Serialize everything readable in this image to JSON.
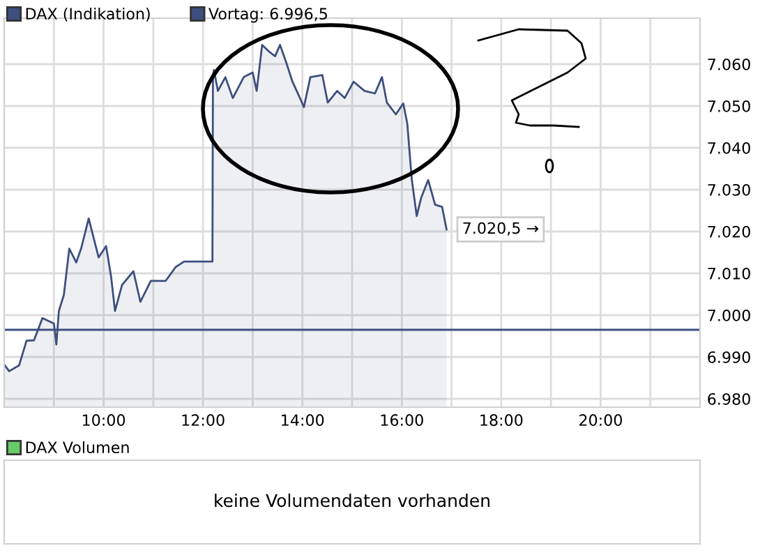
{
  "chart_data": [
    {
      "type": "area",
      "legend": "top",
      "grid": true,
      "tick_labels": "xy",
      "xlim": [
        8,
        22
      ],
      "ylim": [
        6978,
        7071
      ],
      "xticks": [
        {
          "value": 9,
          "label": null
        },
        {
          "value": 10,
          "label": "10:00"
        },
        {
          "value": 11,
          "label": null
        },
        {
          "value": 12,
          "label": "12:00"
        },
        {
          "value": 13,
          "label": null
        },
        {
          "value": 14,
          "label": "14:00"
        },
        {
          "value": 15,
          "label": null
        },
        {
          "value": 16,
          "label": "16:00"
        },
        {
          "value": 17,
          "label": null
        },
        {
          "value": 18,
          "label": "18:00"
        },
        {
          "value": 19,
          "label": null
        },
        {
          "value": 20,
          "label": "20:00"
        },
        {
          "value": 21,
          "label": null
        }
      ],
      "yticks": [
        {
          "value": 6980,
          "label": "6.980"
        },
        {
          "value": 6990,
          "label": "6.990"
        },
        {
          "value": 7000,
          "label": "7.000"
        },
        {
          "value": 7010,
          "label": "7.010"
        },
        {
          "value": 7020,
          "label": "7.020"
        },
        {
          "value": 7030,
          "label": "7.030"
        },
        {
          "value": 7040,
          "label": "7.040"
        },
        {
          "value": 7050,
          "label": "7.050"
        },
        {
          "value": 7060,
          "label": "7.060"
        }
      ],
      "series": [
        {
          "name": "DAX (Indikation)",
          "color": "#3d4f7f",
          "x": [
            8.0,
            8.1,
            8.3,
            8.45,
            8.6,
            8.77,
            9.0,
            9.05,
            9.1,
            9.2,
            9.31,
            9.45,
            9.55,
            9.7,
            9.9,
            10.05,
            10.15,
            10.23,
            10.37,
            10.6,
            10.74,
            10.95,
            11.25,
            11.45,
            11.62,
            12.19,
            12.2,
            12.22,
            12.3,
            12.45,
            12.6,
            12.82,
            13.0,
            13.08,
            13.19,
            13.33,
            13.45,
            13.55,
            13.68,
            13.8,
            13.97,
            14.03,
            14.16,
            14.4,
            14.51,
            14.7,
            14.85,
            15.03,
            15.25,
            15.46,
            15.6,
            15.7,
            15.88,
            16.03,
            16.11,
            16.2,
            16.3,
            16.39,
            16.53,
            16.67,
            16.81,
            16.9
          ],
          "values": [
            6988.2,
            6986.6,
            6988,
            6993.9,
            6994,
            6999.3,
            6998,
            6993,
            7001,
            7004.8,
            7015.9,
            7012.6,
            7016,
            7023.1,
            7013.8,
            7016.5,
            7009.3,
            7001,
            7007.2,
            7010.5,
            7003.2,
            7008.2,
            7008.2,
            7011.5,
            7012.8,
            7012.8,
            7057.4,
            7058.6,
            7053.6,
            7056.9,
            7051.9,
            7056.9,
            7058,
            7053.6,
            7064.6,
            7063,
            7061.9,
            7064.6,
            7060.2,
            7055.8,
            7051.4,
            7049.7,
            7056.9,
            7057.4,
            7050.8,
            7053.6,
            7051.9,
            7055.8,
            7053.6,
            7053,
            7056.9,
            7050.8,
            7048,
            7050.6,
            7045.8,
            7032.5,
            7023.7,
            7028.1,
            7032.3,
            7026.4,
            7025.9,
            7020.5
          ]
        }
      ],
      "ref_lines": [
        {
          "axis": "y",
          "value": 6996.5,
          "label": "Vortag: 6.996,5",
          "color": "#3d4f7f"
        }
      ],
      "annotations": [
        {
          "text": "7.020,5 →",
          "x": 16.9,
          "y": 7020.5
        }
      ]
    },
    {
      "type": "other",
      "legend": "top",
      "series": [
        {
          "name": "DAX Volumen",
          "color": "#66cc66"
        }
      ],
      "annotations": [
        "keine Volumendaten vorhanden"
      ]
    }
  ]
}
